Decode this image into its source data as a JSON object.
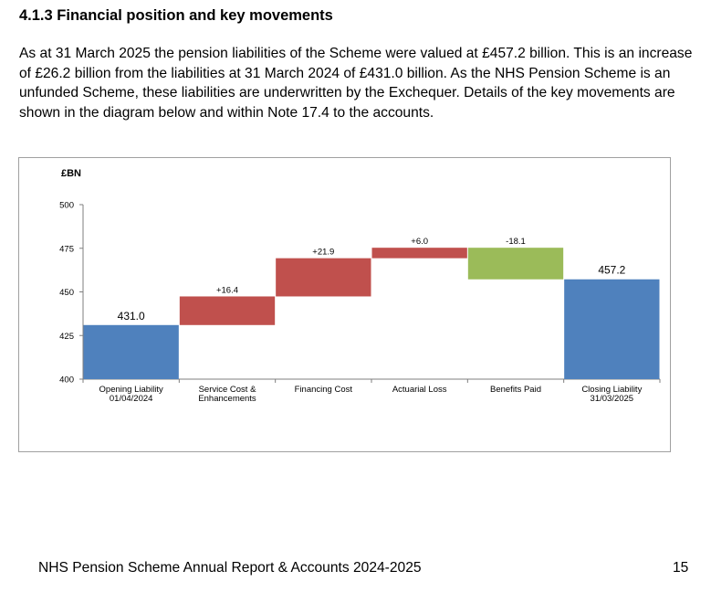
{
  "section": {
    "heading": "4.1.3 Financial position and key movements",
    "paragraph": "As at 31 March 2025 the pension liabilities of the Scheme were valued at £457.2 billion. This is an increase of £26.2 billion from the liabilities at 31 March 2024 of £431.0 billion. As the NHS Pension Scheme is an unfunded Scheme, these liabilities are underwritten by the Exchequer. Details of the key movements are shown in the diagram below and within Note 17.4 to the accounts."
  },
  "chart_data": {
    "type": "waterfall",
    "unit_label": "£BN",
    "ylim": [
      400,
      500
    ],
    "yticks": [
      400,
      425,
      450,
      475,
      500
    ],
    "grid": false,
    "legend": "none",
    "steps": [
      {
        "category": [
          "Opening Liability",
          "01/04/2024"
        ],
        "kind": "total",
        "value": 431.0,
        "label": "431.0",
        "color": "#4f81bd"
      },
      {
        "category": [
          "Service Cost &",
          "Enhancements"
        ],
        "kind": "delta",
        "value": 16.4,
        "label": "+16.4",
        "color": "#c0504d"
      },
      {
        "category": [
          "Financing Cost"
        ],
        "kind": "delta",
        "value": 21.9,
        "label": "+21.9",
        "color": "#c0504d"
      },
      {
        "category": [
          "Actuarial Loss"
        ],
        "kind": "delta",
        "value": 6.0,
        "label": "+6.0",
        "color": "#c0504d"
      },
      {
        "category": [
          "Benefits Paid"
        ],
        "kind": "delta",
        "value": -18.1,
        "label": "-18.1",
        "color": "#9bbb59"
      },
      {
        "category": [
          "Closing Liability",
          "31/03/2025"
        ],
        "kind": "total",
        "value": 457.2,
        "label": "457.2",
        "color": "#4f81bd"
      }
    ]
  },
  "footer": {
    "title": "NHS Pension Scheme Annual Report & Accounts 2024-2025",
    "page_number": "15"
  }
}
